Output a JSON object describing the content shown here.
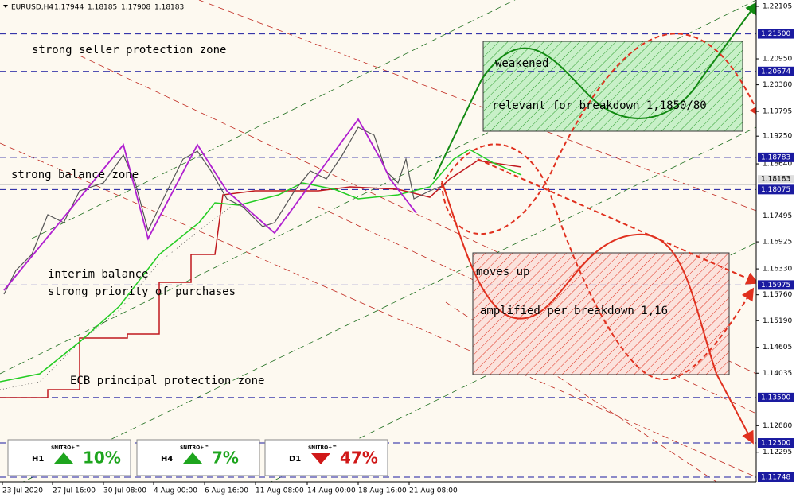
{
  "header": {
    "symbol": "EURUSD,H4",
    "ohlc": [
      "1.17944",
      "1.18185",
      "1.17908",
      "1.18183"
    ]
  },
  "price_axis": {
    "ylim": [
      1.11643,
      1.22245
    ],
    "ticks": [
      1.22105,
      {
        "value": 1.2095,
        "label": "1.20950"
      },
      {
        "value": 1.2038,
        "label": "1.20380"
      },
      1.19795,
      {
        "value": 1.1925,
        "label": "1.19250"
      },
      {
        "value": 1.1864,
        "label": "1.18640"
      },
      1.17495,
      1.16925,
      {
        "value": 1.1633,
        "label": "1.16330"
      },
      {
        "value": 1.1576,
        "label": "1.15760"
      },
      {
        "value": 1.1519,
        "label": "1.15190"
      },
      1.14605,
      1.14035,
      {
        "value": 1.1288,
        "label": "1.12880"
      },
      1.12295
    ],
    "levels": [
      {
        "value": 1.215,
        "label": "1.21500"
      },
      1.20674,
      1.18783,
      1.18075,
      1.15975,
      {
        "value": 1.135,
        "label": "1.13500"
      },
      {
        "value": 1.125,
        "label": "1.12500"
      },
      1.11748
    ],
    "current_price": 1.18183
  },
  "time_axis": {
    "labels": [
      "23 Jul 2020",
      "27 Jul 16:00",
      "30 Jul 08:00",
      "4 Aug 00:00",
      "6 Aug 16:00",
      "11 Aug 08:00",
      "14 Aug 00:00",
      "18 Aug 16:00",
      "21 Aug 08:00"
    ]
  },
  "annotations": [
    "strong seller protection zone",
    "strong balance zone",
    "interim balance",
    "strong priority of purchases",
    "ECB principal protection zone",
    "weakened",
    "relevant for breakdown 1,1850/80",
    "moves up",
    "amplified per breakdown 1,16"
  ],
  "widgets": [
    {
      "timeframe": "H1",
      "brand": "$NITRO+™",
      "percent": "10%",
      "direction": "up"
    },
    {
      "timeframe": "H4",
      "brand": "$NITRO+™",
      "percent": "7%",
      "direction": "up"
    },
    {
      "timeframe": "D1",
      "brand": "$NITRO+™",
      "percent": "47%",
      "direction": "down"
    }
  ]
}
